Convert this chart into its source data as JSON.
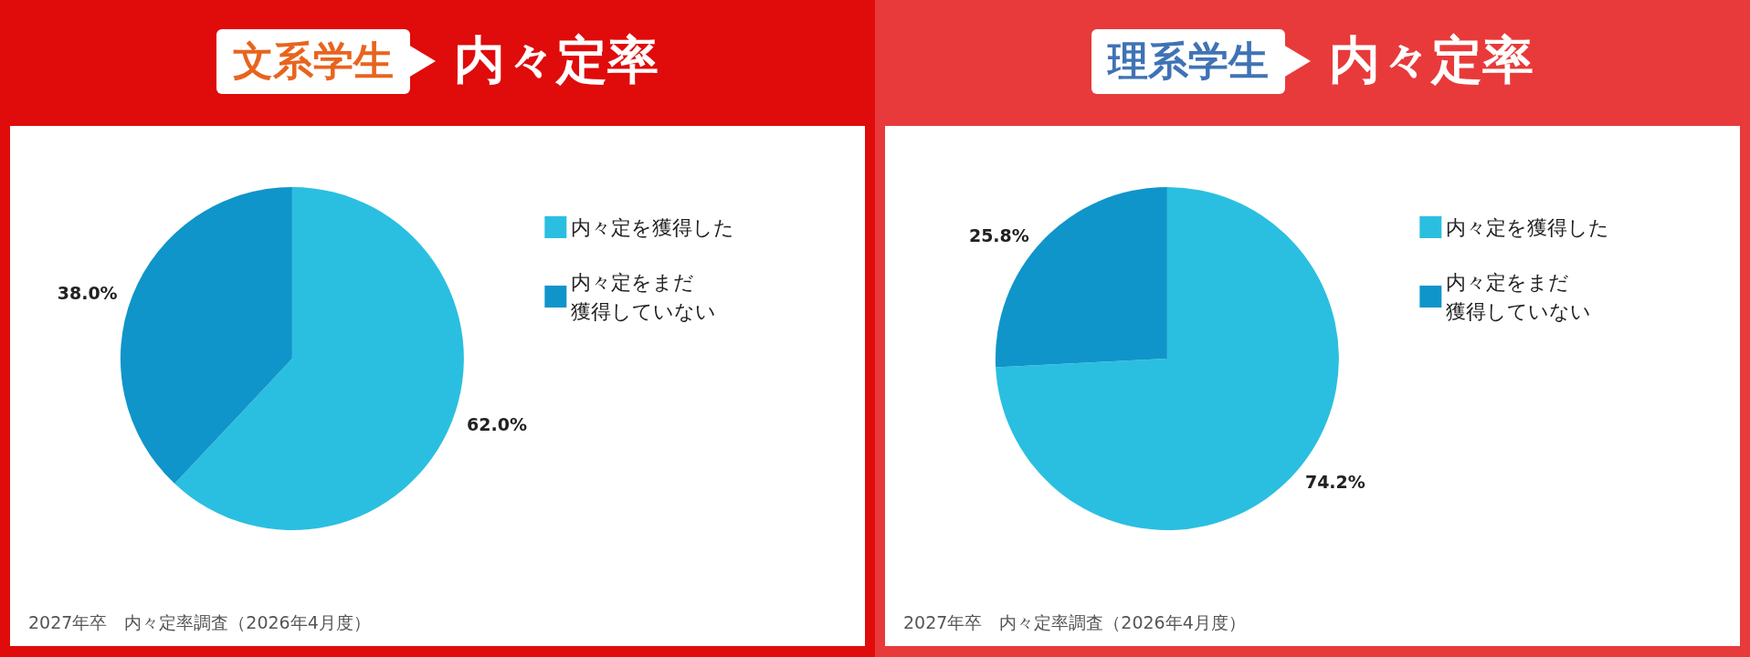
{
  "chart_data": [
    {
      "type": "pie",
      "title": "文系学生",
      "subtitle": "内々定率",
      "categories": [
        "内々定を獲得した",
        "内々定をまだ獲得していない"
      ],
      "values": [
        62.0,
        38.0
      ],
      "value_labels": [
        "62.0%",
        "38.0%"
      ],
      "colors": [
        "#2abfe0",
        "#0f95c9"
      ],
      "legend": "top right",
      "annotations": [
        "2027年卒　内々定率調査（2026年4月度）"
      ]
    },
    {
      "type": "pie",
      "title": "理系学生",
      "subtitle": "内々定率",
      "categories": [
        "内々定を獲得した",
        "内々定をまだ獲得していない"
      ],
      "values": [
        74.2,
        25.8
      ],
      "value_labels": [
        "74.2%",
        "25.8%"
      ],
      "colors": [
        "#2abfe0",
        "#0f95c9"
      ],
      "legend": "top right",
      "annotations": [
        "2027年卒　内々定率調査（2026年4月度）"
      ]
    }
  ]
}
